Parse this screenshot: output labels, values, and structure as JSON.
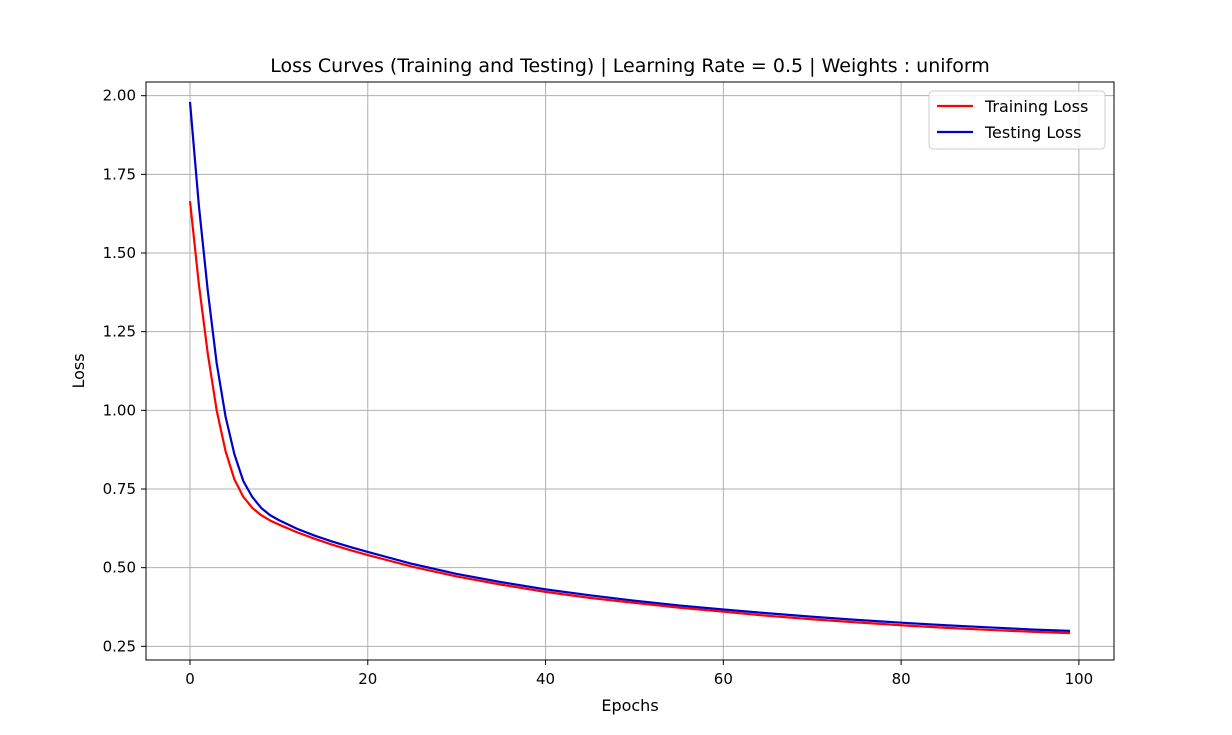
{
  "chart_data": {
    "type": "line",
    "title": "Loss Curves (Training and Testing) | Learning Rate = 0.5 | Weights : uniform",
    "xlabel": "Epochs",
    "ylabel": "Loss",
    "xlim": [
      -4.95,
      103.95
    ],
    "ylim": [
      0.2065,
      2.0435
    ],
    "xticks": [
      0,
      20,
      40,
      60,
      80,
      100
    ],
    "xtick_labels": [
      "0",
      "20",
      "40",
      "60",
      "80",
      "100"
    ],
    "yticks": [
      0.25,
      0.5,
      0.75,
      1.0,
      1.25,
      1.5,
      1.75,
      2.0
    ],
    "ytick_labels": [
      "0.25",
      "0.50",
      "0.75",
      "1.00",
      "1.25",
      "1.50",
      "1.75",
      "2.00"
    ],
    "grid": true,
    "legend_position": "top-right",
    "x": [
      0,
      1,
      2,
      3,
      4,
      5,
      6,
      7,
      8,
      9,
      10,
      12,
      14,
      16,
      18,
      20,
      25,
      30,
      35,
      40,
      45,
      50,
      55,
      60,
      65,
      70,
      75,
      80,
      85,
      90,
      95,
      99
    ],
    "series": [
      {
        "name": "Training Loss",
        "color": "#ff0000",
        "values": [
          1.665,
          1.4,
          1.18,
          1.0,
          0.87,
          0.78,
          0.725,
          0.69,
          0.667,
          0.65,
          0.637,
          0.613,
          0.592,
          0.573,
          0.556,
          0.54,
          0.503,
          0.472,
          0.446,
          0.423,
          0.404,
          0.388,
          0.373,
          0.36,
          0.347,
          0.336,
          0.326,
          0.317,
          0.309,
          0.302,
          0.296,
          0.292
        ]
      },
      {
        "name": "Testing Loss",
        "color": "#0000cc",
        "values": [
          1.98,
          1.65,
          1.38,
          1.15,
          0.98,
          0.86,
          0.775,
          0.725,
          0.69,
          0.667,
          0.651,
          0.624,
          0.602,
          0.583,
          0.566,
          0.55,
          0.512,
          0.48,
          0.454,
          0.431,
          0.412,
          0.395,
          0.38,
          0.367,
          0.355,
          0.344,
          0.334,
          0.325,
          0.317,
          0.31,
          0.303,
          0.299
        ]
      }
    ]
  }
}
